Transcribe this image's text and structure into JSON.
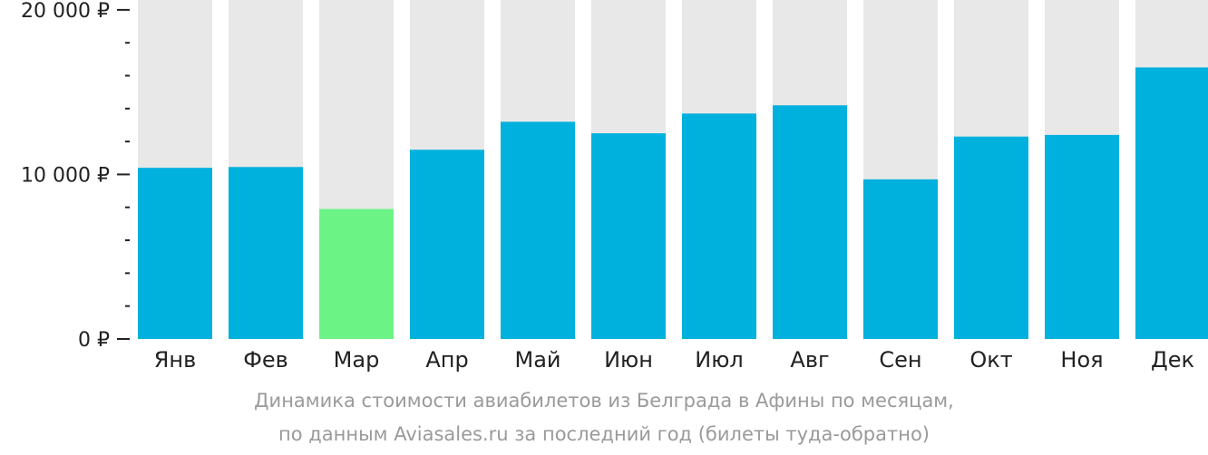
{
  "chart_data": {
    "type": "bar",
    "categories": [
      "Янв",
      "Фев",
      "Мар",
      "Апр",
      "Май",
      "Июн",
      "Июл",
      "Авг",
      "Сен",
      "Окт",
      "Ноя",
      "Дек"
    ],
    "values": [
      10400,
      10450,
      7900,
      11500,
      13200,
      12500,
      13700,
      14200,
      9700,
      12300,
      12400,
      16500
    ],
    "ylim": [
      0,
      20600
    ],
    "yticks": [
      0,
      10000,
      20000
    ],
    "ytick_labels": [
      "0 ₽",
      "10 000 ₽",
      "20 000 ₽"
    ],
    "minor_tick_step": 2000,
    "highlight_index": 2,
    "colors": {
      "bar": "#00b0dd",
      "highlight": "#6cf386",
      "track": "#e8e8e8",
      "axis": "#222222"
    },
    "caption_line1": "Динамика стоимости авиабилетов из Белграда в Афины по месяцам,",
    "caption_line2": "по данным Aviasales.ru за последний год (билеты туда-обратно)"
  }
}
